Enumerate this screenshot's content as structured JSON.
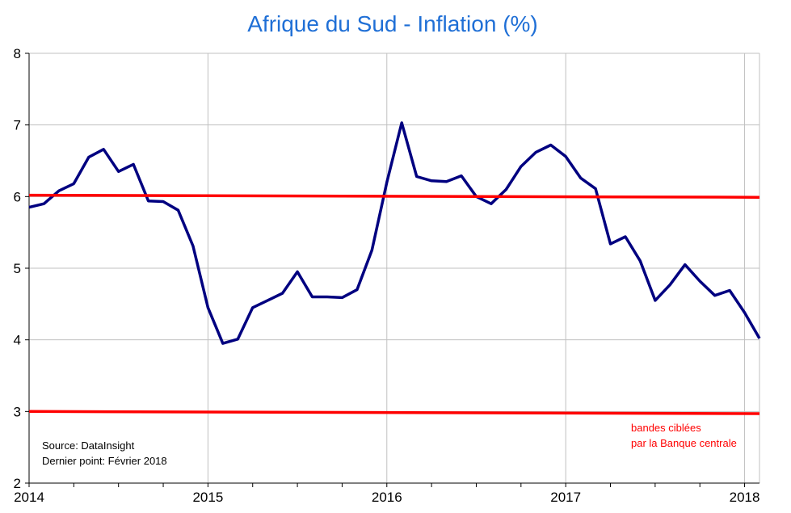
{
  "chart_data": {
    "type": "line",
    "title": "Afrique du Sud - Inflation (%)",
    "xlabel": "",
    "ylabel": "",
    "xlim": [
      2014.0,
      2018.0833
    ],
    "ylim": [
      2,
      8
    ],
    "x_ticks": [
      "2014",
      "2015",
      "2016",
      "2017",
      "2018"
    ],
    "y_ticks": [
      "2",
      "3",
      "4",
      "5",
      "6",
      "7",
      "8"
    ],
    "grid": true,
    "series": [
      {
        "color": "#000080",
        "x": [
          "2014-01",
          "2014-02",
          "2014-03",
          "2014-04",
          "2014-05",
          "2014-06",
          "2014-07",
          "2014-08",
          "2014-09",
          "2014-10",
          "2014-11",
          "2014-12",
          "2015-01",
          "2015-02",
          "2015-03",
          "2015-04",
          "2015-05",
          "2015-06",
          "2015-07",
          "2015-08",
          "2015-09",
          "2015-10",
          "2015-11",
          "2015-12",
          "2016-01",
          "2016-02",
          "2016-03",
          "2016-04",
          "2016-05",
          "2016-06",
          "2016-07",
          "2016-08",
          "2016-09",
          "2016-10",
          "2016-11",
          "2016-12",
          "2017-01",
          "2017-02",
          "2017-03",
          "2017-04",
          "2017-05",
          "2017-06",
          "2017-07",
          "2017-08",
          "2017-09",
          "2017-10",
          "2017-11",
          "2017-12",
          "2018-01",
          "2018-02"
        ],
        "values": [
          5.85,
          5.9,
          6.08,
          6.18,
          6.55,
          6.66,
          6.35,
          6.45,
          5.94,
          5.93,
          5.81,
          5.31,
          4.45,
          3.95,
          4.01,
          4.45,
          4.55,
          4.65,
          4.95,
          4.6,
          4.6,
          4.59,
          4.7,
          5.25,
          6.2,
          7.03,
          6.28,
          6.22,
          6.21,
          6.29,
          6.0,
          5.9,
          6.1,
          6.42,
          6.62,
          6.72,
          6.56,
          6.26,
          6.11,
          5.34,
          5.44,
          5.1,
          4.55,
          4.77,
          5.05,
          4.82,
          4.62,
          4.69,
          4.38,
          4.02
        ]
      },
      {
        "color": "#ff0000",
        "x": [
          "2014-01",
          "2018-02"
        ],
        "values": [
          6.02,
          5.99
        ]
      },
      {
        "color": "#ff0000",
        "x": [
          "2014-01",
          "2018-02"
        ],
        "values": [
          3.0,
          2.97
        ]
      }
    ]
  },
  "annotations": {
    "target_bands_line1": "bandes ciblées",
    "target_bands_line2": "par la Banque centrale",
    "source": "Source: DataInsight",
    "last_point": "Dernier point: Février 2018"
  },
  "colors": {
    "title": "#1f6fd6",
    "inflation": "#000080",
    "bands": "#ff0000",
    "grid": "#c0c0c0",
    "annotation_red": "#ff0000"
  }
}
